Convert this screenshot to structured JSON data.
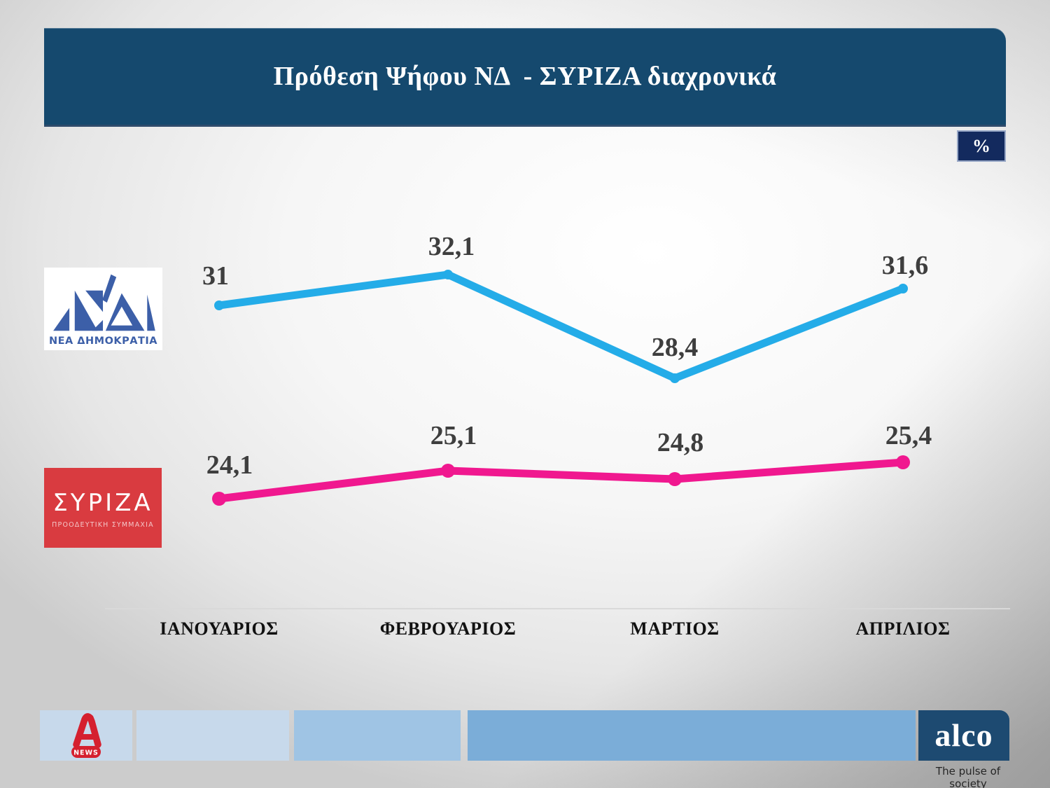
{
  "title_bar": {
    "title": "Πρόθεση Ψήφου ΝΔ  - ΣΥΡΙΖΑ διαχρονικά",
    "bg_color": "#15496E"
  },
  "unit_badge": {
    "label": "%",
    "bg_color": "#132A5E"
  },
  "chart_data": {
    "type": "line",
    "categories": [
      "ΙΑΝΟΥΑΡΙΟΣ",
      "ΦΕΒΡΟΥΑΡΙΟΣ",
      "ΜΑΡΤΙΟΣ",
      "ΑΠΡΙΛΙΟΣ"
    ],
    "series": [
      {
        "name": "ΝΔ",
        "color": "#24ACE8",
        "values": [
          31,
          32.1,
          28.4,
          31.6
        ],
        "labels": [
          "31",
          "32,1",
          "28,4",
          "31,6"
        ]
      },
      {
        "name": "ΣΥΡΙΖΑ",
        "color": "#F0188F",
        "values": [
          24.1,
          25.1,
          24.8,
          25.4
        ],
        "labels": [
          "24,1",
          "25,1",
          "24,8",
          "25,4"
        ]
      }
    ],
    "unit": "%",
    "decimal_separator": ",",
    "grid": false,
    "legend_position": "left",
    "value_label_color": "#3E3E3E"
  },
  "nd_logo": {
    "caption": "ΝΕΑ ΔΗΜΟΚΡΑΤΙΑ",
    "color": "#3C5FA8",
    "bg_color": "#FFFFFF"
  },
  "syriza_logo": {
    "title": "ΣΥΡΙΖΑ",
    "subtitle": "ΠΡΟΟΔΕΥΤΙΚΗ ΣΥΜΜΑΧΙΑ",
    "bg_color": "#D93B40"
  },
  "footer": {
    "band_colors": [
      "#C7D9EB",
      "#C7D9EB",
      "#9FC4E4",
      "#7BADD8"
    ],
    "alpha_news": {
      "news_label": "NEWS",
      "color": "#D5202F"
    },
    "alco": {
      "wordmark": "alco",
      "tagline": "The pulse of society",
      "bg_color": "#1D4A71"
    }
  }
}
